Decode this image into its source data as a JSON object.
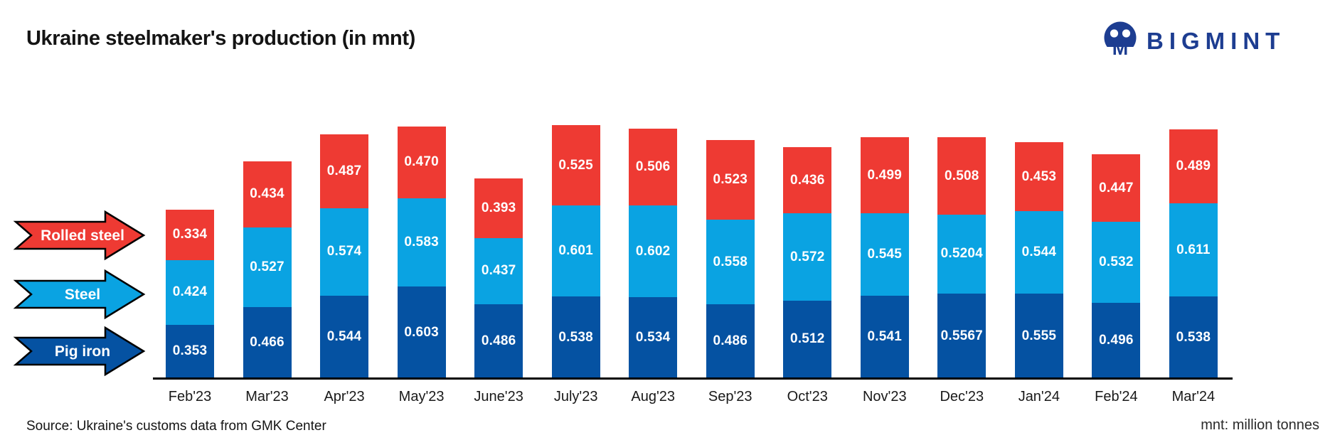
{
  "title": "Ukraine steelmaker's production (in mnt)",
  "logo": {
    "brand": "BIGMINT",
    "color": "#1d3d91"
  },
  "legend": [
    {
      "label": "Rolled steel",
      "color": "#ee3a33"
    },
    {
      "label": "Steel",
      "color": "#0aa3e2"
    },
    {
      "label": "Pig iron",
      "color": "#0552a2"
    }
  ],
  "footer": {
    "source": "Source: Ukraine's customs data from GMK Center",
    "note": "mnt: million tonnes"
  },
  "chart_data": {
    "type": "bar",
    "stacked": true,
    "title": "Ukraine steelmaker's production (in mnt)",
    "unit": "mnt (million tonnes)",
    "legend_position": "left",
    "value_labels": "inside-center",
    "grid": false,
    "categories": [
      "Feb'23",
      "Mar'23",
      "Apr'23",
      "May'23",
      "June'23",
      "July'23",
      "Aug'23",
      "Sep'23",
      "Oct'23",
      "Nov'23",
      "Dec'23",
      "Jan'24",
      "Feb'24",
      "Mar'24"
    ],
    "series": [
      {
        "name": "Pig iron",
        "color": "#0552a2",
        "values": [
          0.353,
          0.466,
          0.544,
          0.603,
          0.486,
          0.538,
          0.534,
          0.486,
          0.512,
          0.541,
          0.5567,
          0.555,
          0.496,
          0.538
        ],
        "labels": [
          "0.353",
          "0.466",
          "0.544",
          "0.603",
          "0.486",
          "0.538",
          "0.534",
          "0.486",
          "0.512",
          "0.541",
          "0.5567",
          "0.555",
          "0.496",
          "0.538"
        ]
      },
      {
        "name": "Steel",
        "color": "#0aa3e2",
        "values": [
          0.424,
          0.527,
          0.574,
          0.583,
          0.437,
          0.601,
          0.602,
          0.558,
          0.572,
          0.545,
          0.5204,
          0.544,
          0.532,
          0.611
        ],
        "labels": [
          "0.424",
          "0.527",
          "0.574",
          "0.583",
          "0.437",
          "0.601",
          "0.602",
          "0.558",
          "0.572",
          "0.545",
          "0.5204",
          "0.544",
          "0.532",
          "0.611"
        ]
      },
      {
        "name": "Rolled steel",
        "color": "#ee3a33",
        "values": [
          0.334,
          0.434,
          0.487,
          0.47,
          0.393,
          0.525,
          0.506,
          0.523,
          0.436,
          0.499,
          0.508,
          0.453,
          0.447,
          0.489
        ],
        "labels": [
          "0.334",
          "0.434",
          "0.487",
          "0.470",
          "0.393",
          "0.525",
          "0.506",
          "0.523",
          "0.436",
          "0.499",
          "0.508",
          "0.453",
          "0.447",
          "0.489"
        ]
      }
    ]
  }
}
